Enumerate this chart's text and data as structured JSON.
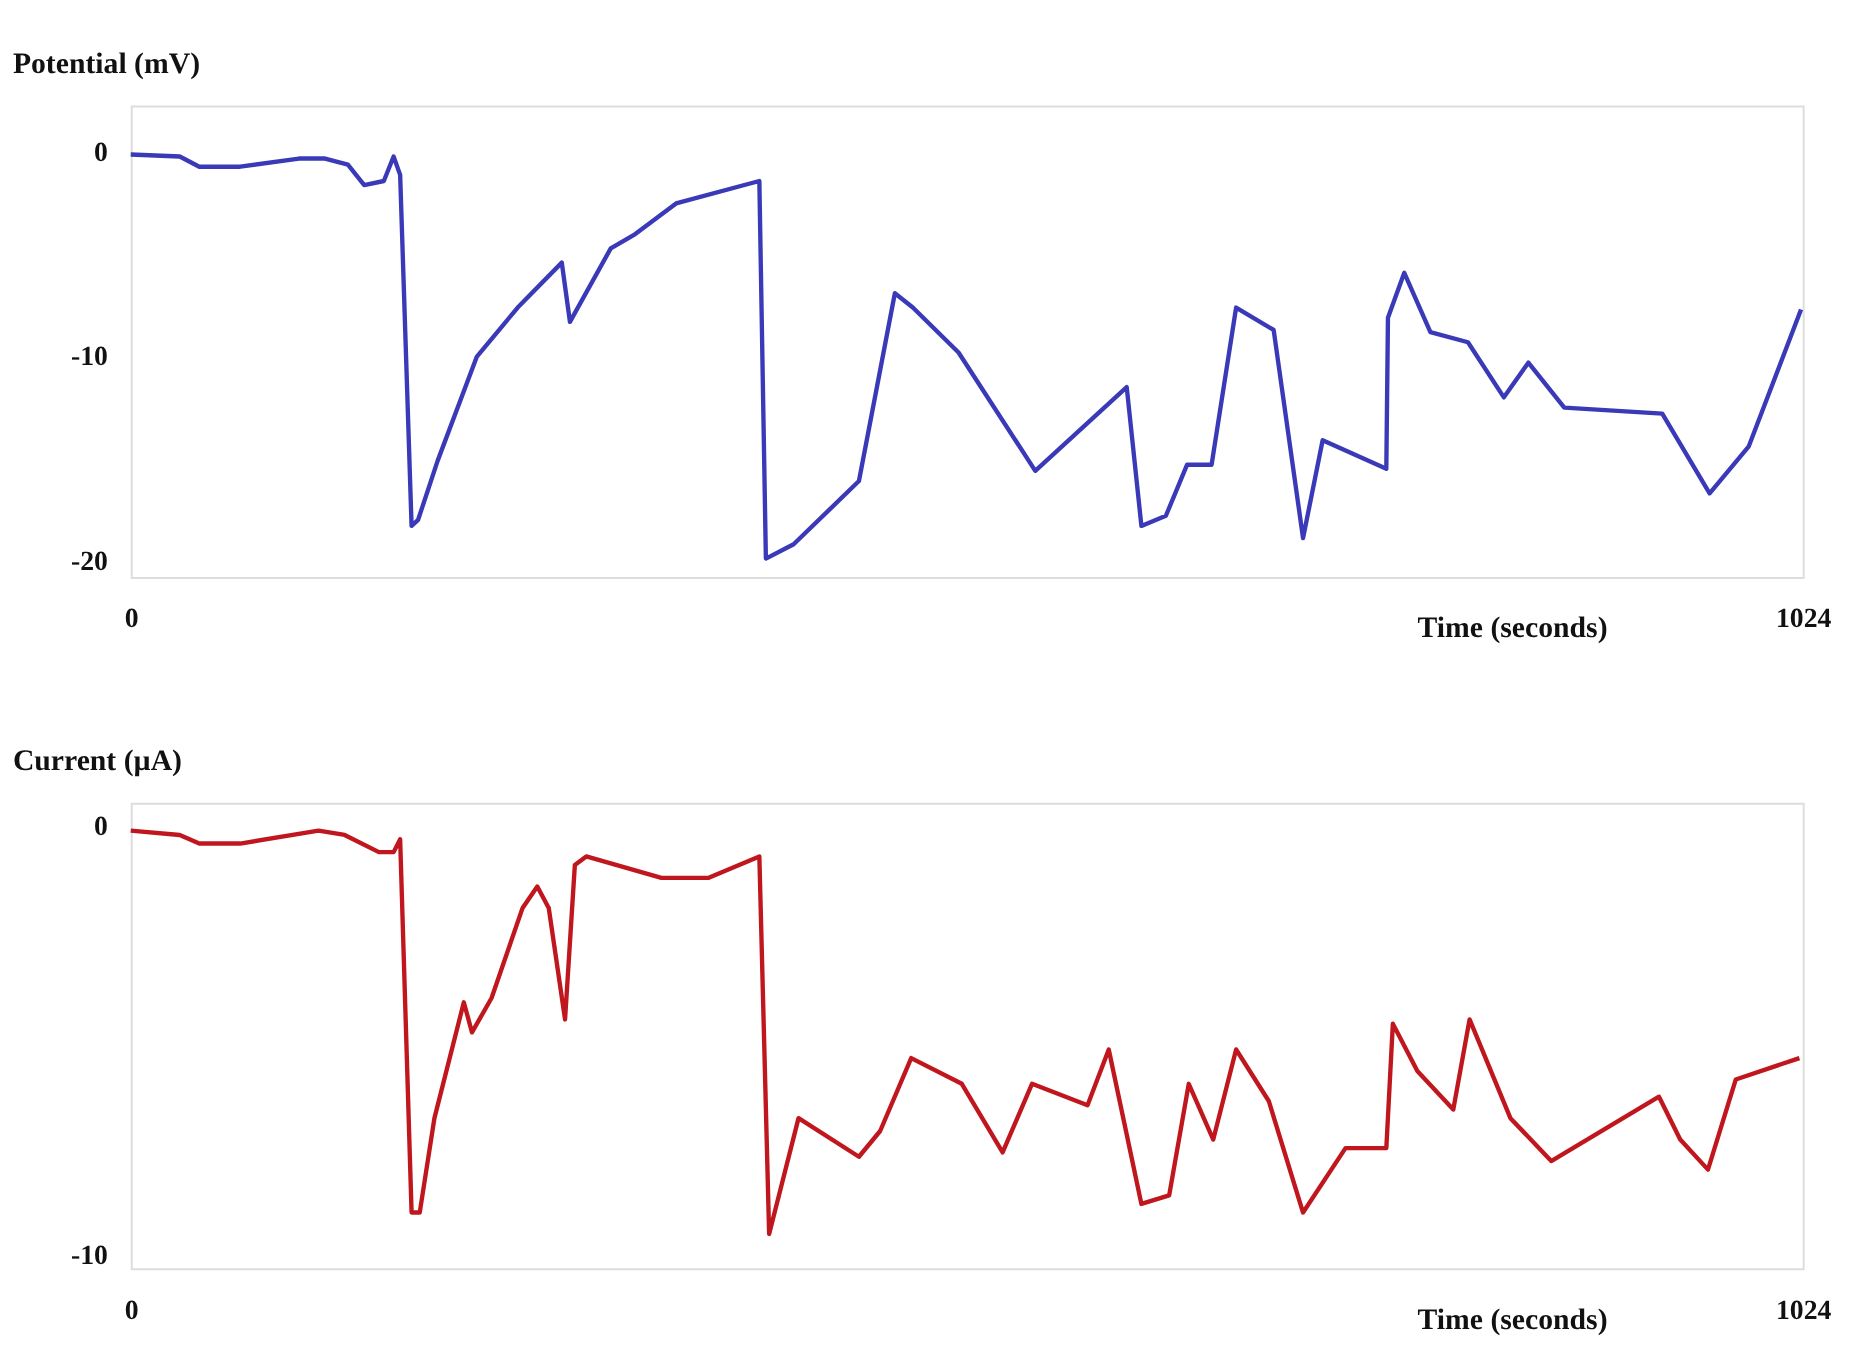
{
  "chart_data": [
    {
      "type": "line",
      "ylabel": "Potential (mV)",
      "xlabel": "Time (seconds)",
      "xlim": [
        0,
        1024
      ],
      "xticks": [
        0,
        1024
      ],
      "ylim": [
        -20.8,
        2.3
      ],
      "yticks": [
        0,
        -10,
        -20
      ],
      "grid": false,
      "line_style": "solid",
      "x": [
        0,
        30,
        42,
        67,
        103,
        119,
        133,
        143,
        155,
        161,
        165,
        172,
        176,
        188,
        212,
        237,
        264,
        269,
        294,
        309,
        334,
        385,
        389,
        406,
        446,
        468,
        479,
        507,
        554,
        610,
        619,
        634,
        647,
        662,
        677,
        700,
        718,
        730,
        769,
        770,
        780,
        796,
        819,
        841,
        856,
        878,
        938,
        967,
        991,
        1023
      ],
      "series": [
        {
          "color": "#3a3ab8",
          "values": [
            -0.1,
            -0.2,
            -0.7,
            -0.7,
            -0.3,
            -0.3,
            -0.6,
            -1.6,
            -1.4,
            -0.2,
            -1.1,
            -18.3,
            -18.0,
            -15.1,
            -10.0,
            -7.6,
            -5.4,
            -8.3,
            -4.7,
            -4.0,
            -2.5,
            -1.4,
            -19.9,
            -19.2,
            -16.1,
            -6.9,
            -7.6,
            -9.8,
            -15.6,
            -11.5,
            -18.3,
            -17.8,
            -15.3,
            -15.3,
            -7.6,
            -8.7,
            -18.9,
            -14.1,
            -15.5,
            -8.1,
            -5.9,
            -8.8,
            -9.3,
            -12.0,
            -10.3,
            -12.5,
            -12.8,
            -16.7,
            -14.4,
            -7.7
          ]
        }
      ]
    },
    {
      "type": "line",
      "ylabel": "Current (µA)",
      "xlabel": "Time (seconds)",
      "xlim": [
        0,
        1024
      ],
      "xticks": [
        0,
        1024
      ],
      "ylim": [
        -10.3,
        0.55
      ],
      "yticks": [
        0,
        -10
      ],
      "grid": false,
      "line_style": "solid",
      "x": [
        0,
        30,
        42,
        67,
        115,
        131,
        152,
        161,
        165,
        172,
        177,
        186,
        204,
        209,
        221,
        240,
        249,
        256,
        266,
        272,
        279,
        325,
        354,
        385,
        391,
        409,
        446,
        459,
        478,
        509,
        534,
        552,
        586,
        599,
        619,
        636,
        648,
        663,
        677,
        697,
        718,
        744,
        769,
        773,
        788,
        810,
        820,
        845,
        870,
        936,
        949,
        966,
        983,
        1022
      ],
      "series": [
        {
          "color": "#c0171e",
          "values": [
            -0.1,
            -0.2,
            -0.4,
            -0.4,
            -0.1,
            -0.2,
            -0.6,
            -0.6,
            -0.3,
            -9.0,
            -9.0,
            -6.8,
            -4.1,
            -4.8,
            -4.0,
            -1.9,
            -1.4,
            -1.9,
            -4.5,
            -0.9,
            -0.7,
            -1.2,
            -1.2,
            -0.7,
            -9.5,
            -6.8,
            -7.7,
            -7.1,
            -5.4,
            -6.0,
            -7.6,
            -6.0,
            -6.5,
            -5.2,
            -8.8,
            -8.6,
            -6.0,
            -7.3,
            -5.2,
            -6.4,
            -9.0,
            -7.5,
            -7.5,
            -4.6,
            -5.7,
            -6.6,
            -4.5,
            -6.8,
            -7.8,
            -6.3,
            -7.3,
            -8.0,
            -5.9,
            -5.4
          ]
        }
      ]
    }
  ]
}
